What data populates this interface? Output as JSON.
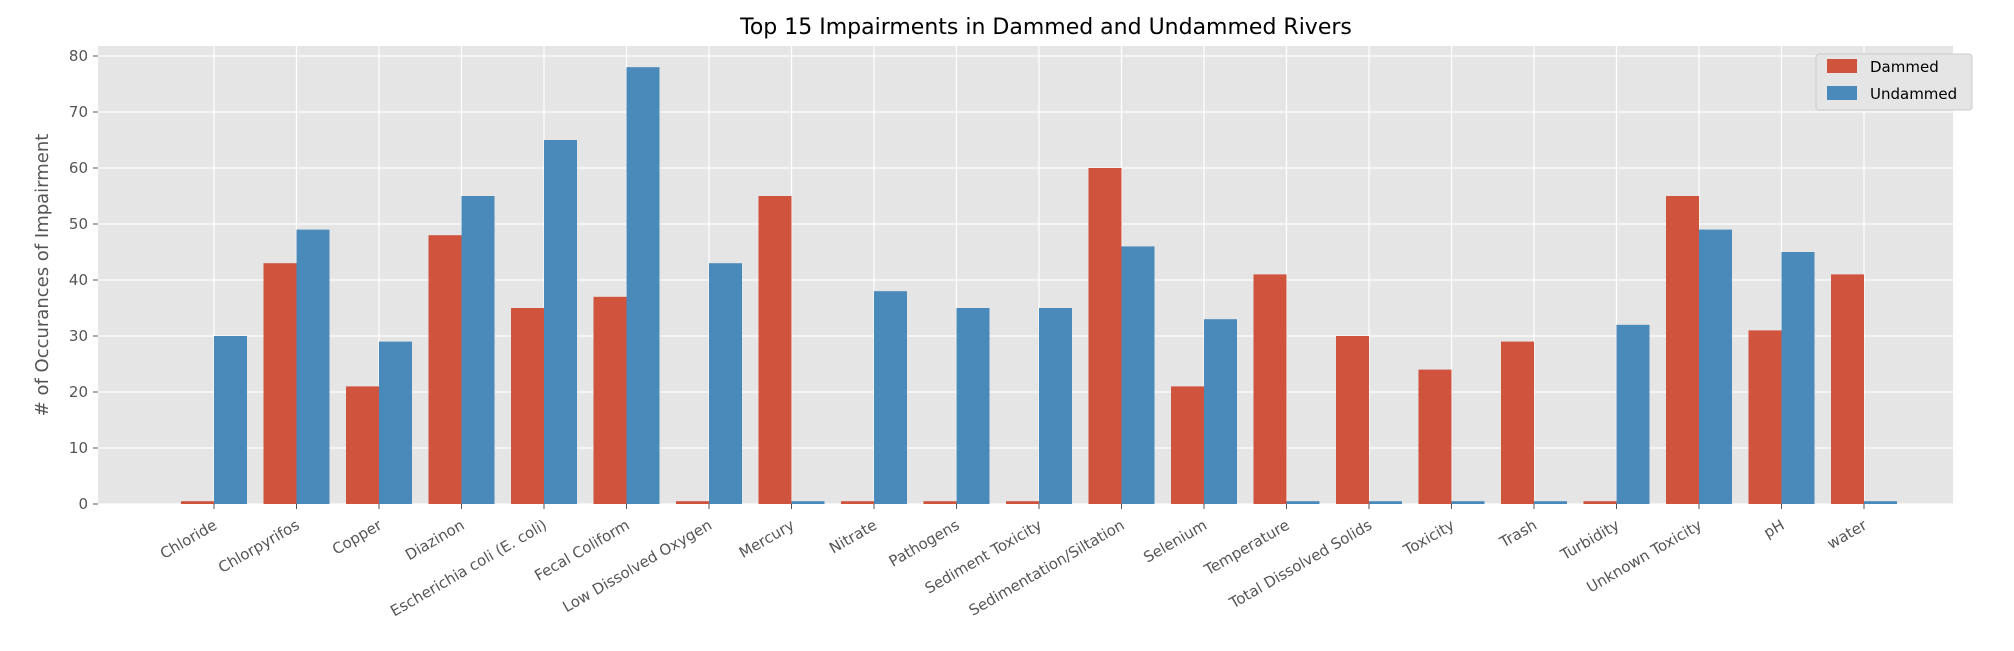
{
  "chart_data": {
    "type": "bar",
    "title": "Top 15 Impairments in Dammed and Undammed Rivers",
    "xlabel": "",
    "ylabel": "# of Occurances of Impairment",
    "ylim": [
      0,
      82
    ],
    "yticks": [
      0,
      10,
      20,
      30,
      40,
      50,
      60,
      70,
      80
    ],
    "grid": true,
    "legend_position": "top-right",
    "categories": [
      "Chloride",
      "Chlorpyrifos",
      "Copper",
      "Diazinon",
      "Escherichia coli (E. coli)",
      "Fecal Coliform",
      "Low Dissolved Oxygen",
      "Mercury",
      "Nitrate",
      "Pathogens",
      "Sediment Toxicity",
      "Sedimentation/Siltation",
      "Selenium",
      "Temperature",
      "Total Dissolved Solids",
      "Toxicity",
      "Trash",
      "Turbidity",
      "Unknown Toxicity",
      "pH",
      "water"
    ],
    "series": [
      {
        "name": "Dammed",
        "color": "#d0533e",
        "values": [
          0.5,
          43,
          21,
          48,
          35,
          37,
          0.5,
          55,
          0.5,
          0.5,
          0.5,
          60,
          21,
          41,
          30,
          24,
          29,
          0.5,
          55,
          31,
          41
        ]
      },
      {
        "name": "Undammed",
        "color": "#4a8abb",
        "values": [
          30,
          49,
          29,
          55,
          65,
          78,
          43,
          0.5,
          38,
          35,
          35,
          46,
          33,
          0.5,
          0.5,
          0.5,
          0.5,
          32,
          49,
          45,
          0.5
        ]
      }
    ]
  }
}
